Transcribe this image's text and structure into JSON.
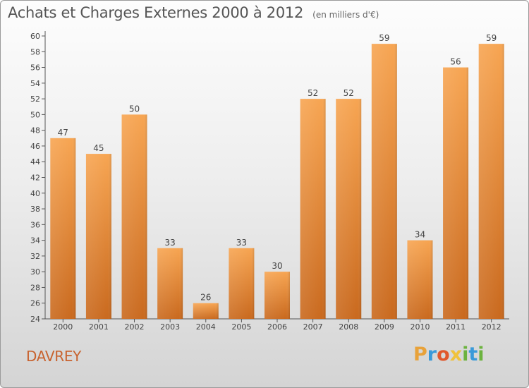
{
  "header": {
    "title": "Achats et Charges Externes 2000 à 2012",
    "unit": "(en milliers d'€)"
  },
  "commune": "DAVREY",
  "logo": {
    "text": "Proxiti"
  },
  "colors": {
    "bar_top": "#f7a552",
    "bar_bottom": "#c9691e",
    "axis": "#555555",
    "title": "#555555",
    "commune": "#c8622e"
  },
  "chart_data": {
    "type": "bar",
    "title": "Achats et Charges Externes 2000 à 2012",
    "subtitle": "(en milliers d'€)",
    "xlabel": "",
    "ylabel": "",
    "categories": [
      "2000",
      "2001",
      "2002",
      "2003",
      "2004",
      "2005",
      "2006",
      "2007",
      "2008",
      "2009",
      "2010",
      "2011",
      "2012"
    ],
    "values": [
      47,
      45,
      50,
      33,
      26,
      33,
      30,
      52,
      52,
      59,
      34,
      56,
      59
    ],
    "ylim": [
      24,
      60
    ],
    "ytick_step": 2,
    "grid": false,
    "legend": "none"
  }
}
